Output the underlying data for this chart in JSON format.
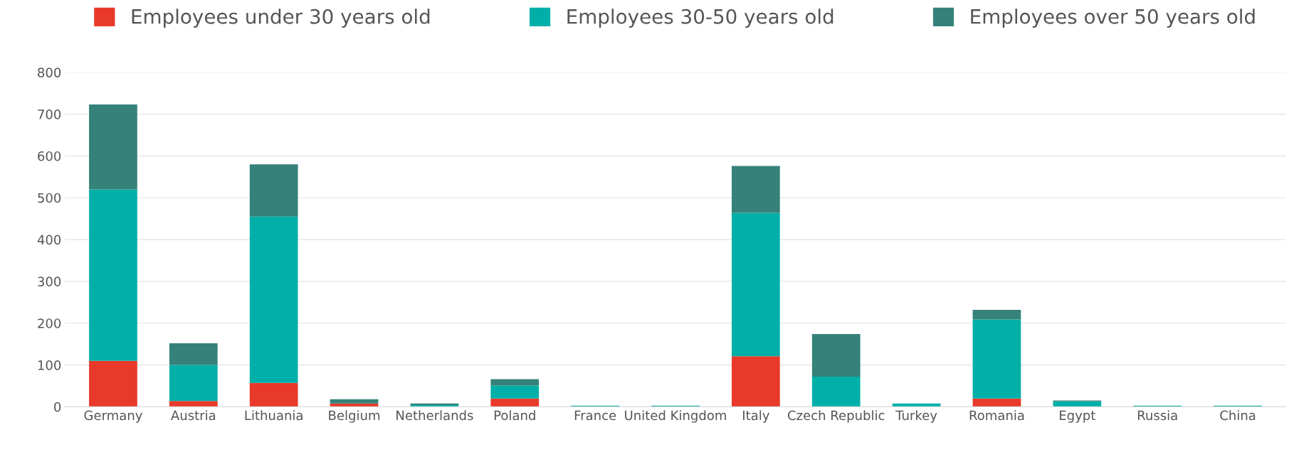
{
  "chart_data": {
    "type": "bar",
    "stacked": true,
    "categories": [
      "Germany",
      "Austria",
      "Lithuania",
      "Belgium",
      "Netherlands",
      "Poland",
      "France",
      "United Kingdom",
      "Italy",
      "Czech Republic",
      "Turkey",
      "Romania",
      "Egypt",
      "Russia",
      "China"
    ],
    "series": [
      {
        "name": "Employees under 30 years old",
        "color": "#e8392a",
        "values": [
          110,
          14,
          57,
          8,
          0,
          20,
          0,
          0,
          121,
          0,
          0,
          20,
          0,
          0,
          0
        ]
      },
      {
        "name": "Employees 30-50 years old",
        "color": "#00b0a8",
        "values": [
          410,
          86,
          398,
          0,
          4,
          31,
          3,
          3,
          343,
          72,
          8,
          189,
          13,
          3,
          3
        ]
      },
      {
        "name": "Employees over 50 years old",
        "color": "#35827a",
        "values": [
          203,
          52,
          125,
          10,
          4,
          15,
          0,
          0,
          112,
          102,
          0,
          23,
          2,
          0,
          0
        ]
      }
    ],
    "ylim": [
      0,
      800
    ],
    "yticks": [
      0,
      100,
      200,
      300,
      400,
      500,
      600,
      700,
      800
    ],
    "grid": "y",
    "legend": "top"
  }
}
